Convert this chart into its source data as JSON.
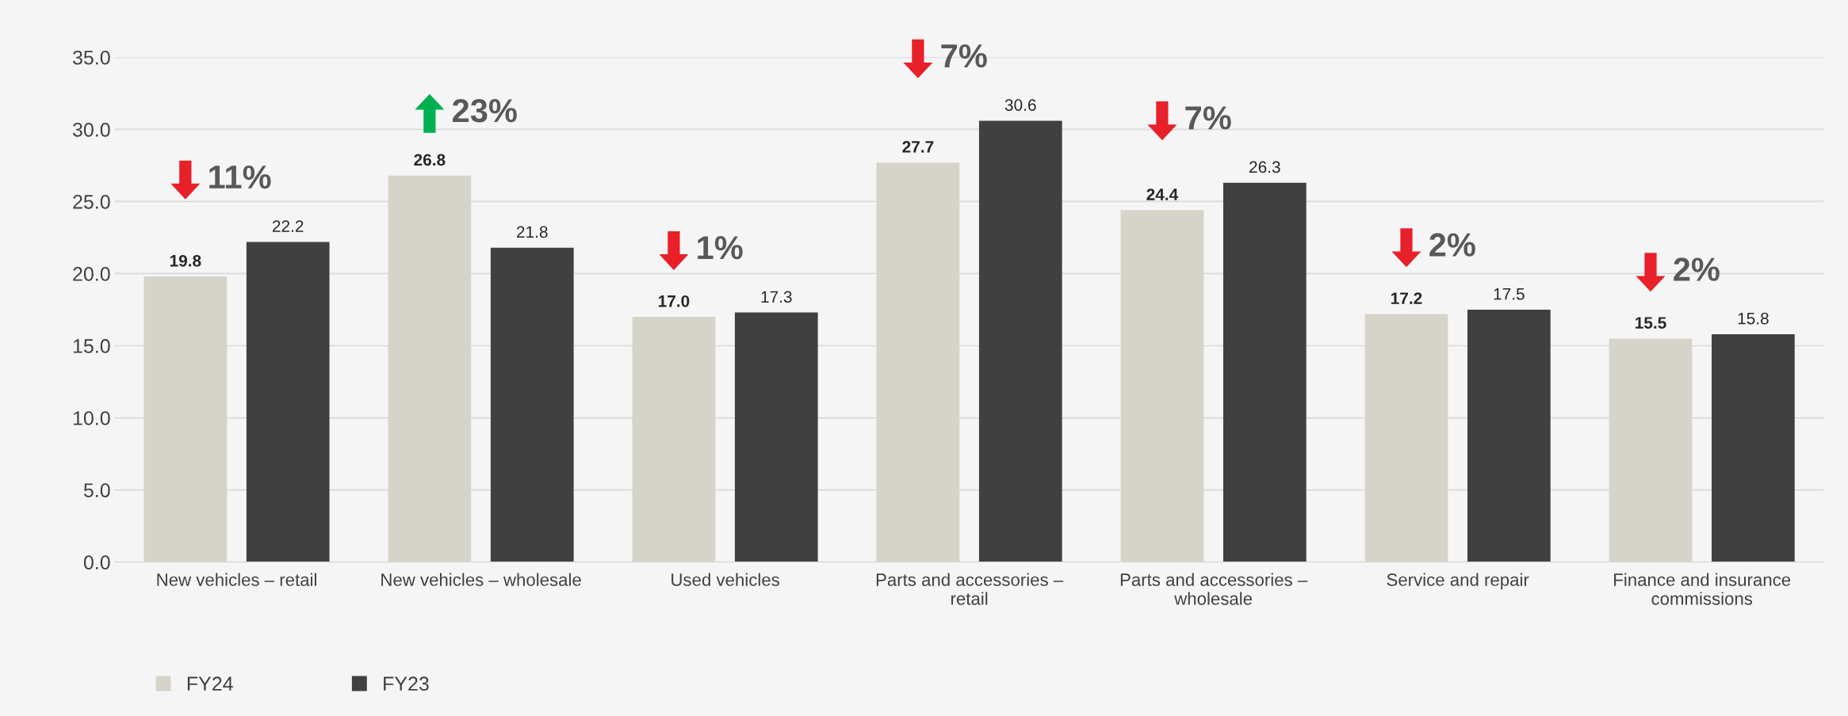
{
  "chart_data": {
    "type": "bar",
    "categories": [
      "New vehicles – retail",
      "New vehicles – wholesale",
      "Used vehicles",
      "Parts and accessories –\nretail",
      "Parts and accessories –\nwholesale",
      "Service and repair",
      "Finance and insurance\ncommissions"
    ],
    "series": [
      {
        "name": "FY24",
        "color": "#d6d4c8",
        "values": [
          19.8,
          26.8,
          17.0,
          27.7,
          24.4,
          17.2,
          15.5
        ],
        "value_labels": [
          "19.8",
          "26.8",
          "17.0",
          "27.7",
          "24.4",
          "17.2",
          "15.5"
        ]
      },
      {
        "name": "FY23",
        "color": "#404040",
        "values": [
          22.2,
          21.8,
          17.3,
          30.6,
          26.3,
          17.5,
          15.8
        ],
        "value_labels": [
          "22.2",
          "21.8",
          "17.3",
          "30.6",
          "26.3",
          "17.5",
          "15.8"
        ]
      }
    ],
    "ylim": [
      0,
      35
    ],
    "yticks": [
      {
        "value": 0,
        "label": "0.0"
      },
      {
        "value": 5,
        "label": "5.0"
      },
      {
        "value": 10,
        "label": "10.0"
      },
      {
        "value": 15,
        "label": "15.0"
      },
      {
        "value": 20,
        "label": "20.0"
      },
      {
        "value": 25,
        "label": "25.0"
      },
      {
        "value": 30,
        "label": "30.0"
      },
      {
        "value": 35,
        "label": "35.0"
      }
    ],
    "grid": "y",
    "legend": "bottom left",
    "annotations": [
      "11%",
      "23%",
      "1%",
      "7%",
      "7%",
      "2%",
      "2%"
    ]
  }
}
